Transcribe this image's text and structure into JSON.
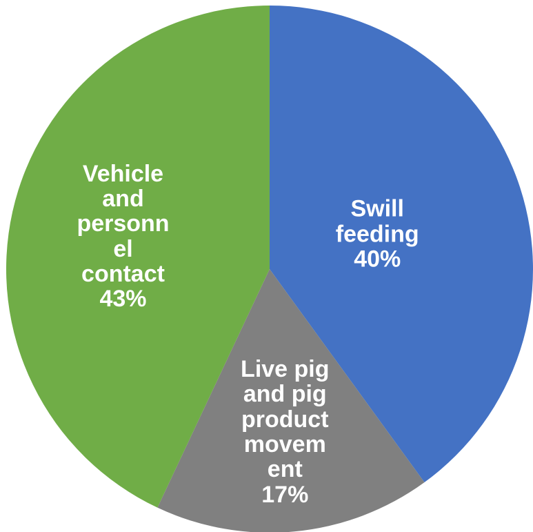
{
  "chart_data": {
    "type": "pie",
    "title": "",
    "slices": [
      {
        "name": "Swill feeding",
        "label_lines": "Swill\nfeeding",
        "percent_label": "40%",
        "value": 40,
        "color": "#4472C4"
      },
      {
        "name": "Live pig and pig product movement",
        "label_lines": "Live pig\nand pig\nproduct\nmovem\nent",
        "percent_label": "17%",
        "value": 17,
        "color": "#808080"
      },
      {
        "name": "Vehicle and personnel contact",
        "label_lines": "Vehicle\nand\npersonn\nel\ncontact",
        "percent_label": "43%",
        "value": 43,
        "color": "#70AD47"
      }
    ],
    "start_angle": "12 o'clock",
    "direction": "clockwise",
    "legend": "none"
  }
}
